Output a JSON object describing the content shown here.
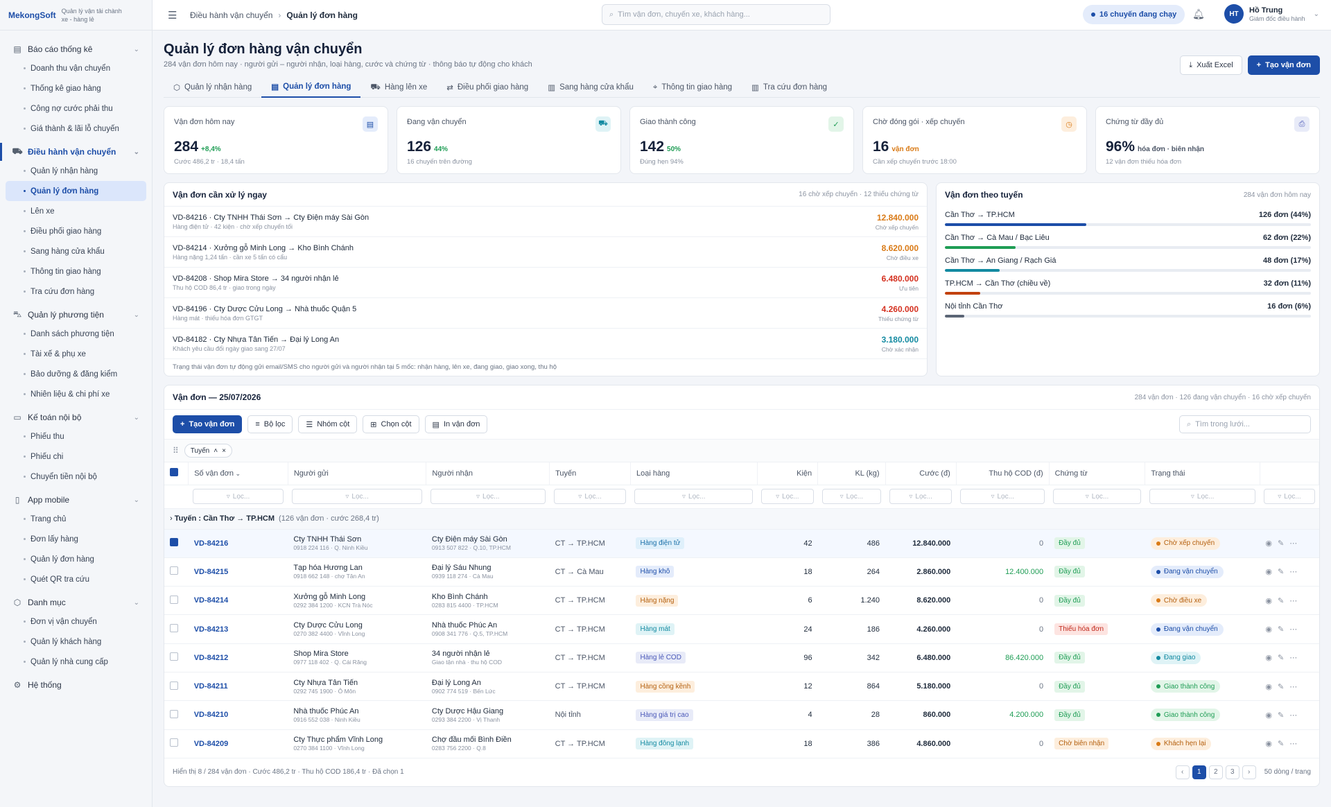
{
  "brand": {
    "logo": "MekongSoft",
    "tagline": "Quản lý vận tải chành xe - hàng lẻ"
  },
  "sidebar": [
    {
      "label": "Báo cáo thống kê",
      "icon": "report-icon",
      "active": false,
      "items": [
        "Doanh thu vận chuyển",
        "Thống kê giao hàng",
        "Công nợ cước phải thu",
        "Giá thành & lãi lỗ chuyến"
      ]
    },
    {
      "label": "Điều hành vận chuyển",
      "icon": "truck-icon",
      "active": true,
      "items": [
        "Quản lý nhận hàng",
        "Quản lý đơn hàng",
        "Lên xe",
        "Điều phối giao hàng",
        "Sang hàng cửa khẩu",
        "Thông tin giao hàng",
        "Tra cứu đơn hàng"
      ]
    },
    {
      "label": "Quản lý phương tiện",
      "icon": "vehicle-icon",
      "active": false,
      "items": [
        "Danh sách phương tiện",
        "Tài xế & phụ xe",
        "Bảo dưỡng & đăng kiểm",
        "Nhiên liệu & chi phí xe"
      ]
    },
    {
      "label": "Kế toán nội bộ",
      "icon": "cash-icon",
      "active": false,
      "items": [
        "Phiếu thu",
        "Phiếu chi",
        "Chuyển tiền nội bộ"
      ]
    },
    {
      "label": "App mobile",
      "icon": "mobile-icon",
      "active": false,
      "items": [
        "Trang chủ",
        "Đơn lấy hàng",
        "Quản lý đơn hàng",
        "Quét QR tra cứu"
      ]
    },
    {
      "label": "Danh mục",
      "icon": "box-icon",
      "active": false,
      "items": [
        "Đơn vị vận chuyển",
        "Quản lý khách hàng",
        "Quản lý nhà cung cấp"
      ]
    },
    {
      "label": "Hệ thống",
      "icon": "gear-icon",
      "active": false,
      "items": []
    }
  ],
  "selected_item": "Quản lý đơn hàng",
  "topbar": {
    "crumb1": "Điều hành vận chuyển",
    "crumb2": "Quản lý đơn hàng",
    "search_placeholder": "Tìm vận đơn, chuyến xe, khách hàng...",
    "trips_pill": "16 chuyến đang chạy",
    "user_initials": "HT",
    "user_name": "Hồ Trung",
    "user_role": "Giám đốc điều hành"
  },
  "page": {
    "title": "Quản lý đơn hàng vận chuyển",
    "subtitle": "284 vận đơn hôm nay · người gửi – người nhận, loại hàng, cước và chứng từ · thông báo tự động cho khách",
    "export_label": "Xuất Excel",
    "create_label": "Tạo vận đơn"
  },
  "tabs": [
    {
      "label": "Quản lý nhận hàng",
      "icon": "box-icon"
    },
    {
      "label": "Quản lý đơn hàng",
      "icon": "doc-icon",
      "active": true
    },
    {
      "label": "Hàng lên xe",
      "icon": "truck-icon"
    },
    {
      "label": "Điều phối giao hàng",
      "icon": "route-icon"
    },
    {
      "label": "Sang hàng cửa khẩu",
      "icon": "gate-icon"
    },
    {
      "label": "Thông tin giao hàng",
      "icon": "pin-icon"
    },
    {
      "label": "Tra cứu đơn hàng",
      "icon": "book-icon"
    }
  ],
  "kpis": [
    {
      "label": "Vận đơn hôm nay",
      "value": "284",
      "change": "+8,4%",
      "note": "Cước 486,2 tr · 18,4 tấn",
      "color": "#1f9d55",
      "icon": "doc-icon",
      "iconbg": "#e4ecfb",
      "iconfg": "#1d4ea8",
      "glyph": "▤"
    },
    {
      "label": "Đang vận chuyển",
      "value": "126",
      "change": "44%",
      "note": "16 chuyến trên đường",
      "color": "#1f9d55",
      "icon": "truck-icon",
      "iconbg": "#dff3f6",
      "iconfg": "#138aa1",
      "glyph": "⛟"
    },
    {
      "label": "Giao thành công",
      "value": "142",
      "change": "50%",
      "note": "Đúng hẹn 94%",
      "color": "#1f9d55",
      "icon": "check-circle-icon",
      "iconbg": "#e2f5e8",
      "iconfg": "#1f9d55",
      "glyph": "✓"
    },
    {
      "label": "Chờ đóng gói · xếp chuyến",
      "value": "16",
      "change": "vận đơn",
      "note": "Cần xếp chuyến trước 18:00",
      "color": "#d97a16",
      "icon": "clock-icon",
      "iconbg": "#fdeedd",
      "iconfg": "#d97a16",
      "glyph": "◷"
    },
    {
      "label": "Chứng từ đầy đủ",
      "value": "96%",
      "change": "hóa đơn · biên nhận",
      "note": "12 vận đơn thiếu hóa đơn",
      "color": "#4b5566",
      "icon": "printer-icon",
      "iconbg": "#e8ebf8",
      "iconfg": "#4957b8",
      "glyph": "⎙"
    }
  ],
  "urgent": {
    "title": "Vận đơn cần xử lý ngay",
    "meta": "16 chờ xếp chuyến · 12 thiếu chứng từ",
    "footer": "Trạng thái vận đơn tự động gửi email/SMS cho người gửi và người nhận tại 5 mốc: nhận hàng, lên xe, đang giao, giao xong, thu hộ",
    "rows": [
      {
        "line1": "VD-84216 · Cty TNHH Thái Sơn → Cty Điện máy Sài Gòn",
        "line2": "Hàng điện tử · 42 kiện · chờ xếp chuyến tối",
        "amount": "12.840.000",
        "status": "Chờ xếp chuyến",
        "color": "#d97a16"
      },
      {
        "line1": "VD-84214 · Xưởng gỗ Minh Long → Kho Bình Chánh",
        "line2": "Hàng nặng 1,24 tấn · cần xe 5 tấn có cẩu",
        "amount": "8.620.000",
        "status": "Chờ điều xe",
        "color": "#d97a16"
      },
      {
        "line1": "VD-84208 · Shop Mira Store → 34 người nhận lẻ",
        "line2": "Thu hộ COD 86,4 tr · giao trong ngày",
        "amount": "6.480.000",
        "status": "Ưu tiên",
        "color": "#d4301f"
      },
      {
        "line1": "VD-84196 · Cty Dược Cửu Long → Nhà thuốc Quận 5",
        "line2": "Hàng mát · thiếu hóa đơn GTGT",
        "amount": "4.260.000",
        "status": "Thiếu chứng từ",
        "color": "#d4301f"
      },
      {
        "line1": "VD-84182 · Cty Nhựa Tân Tiến → Đại lý Long An",
        "line2": "Khách yêu cầu đổi ngày giao sang 27/07",
        "amount": "3.180.000",
        "status": "Chờ xác nhận",
        "color": "#138aa1"
      }
    ]
  },
  "routes": {
    "title": "Vận đơn theo tuyến",
    "meta": "284 vận đơn hôm nay",
    "rows": [
      {
        "name": "Cần Thơ → TP.HCM",
        "value": "126 đơn (44%)",
        "pct": 44,
        "color": "#1d4ea8"
      },
      {
        "name": "Cần Thơ → Cà Mau / Bạc Liêu",
        "value": "62 đơn (22%)",
        "pct": 22,
        "color": "#1f9d55"
      },
      {
        "name": "Cần Thơ → An Giang / Rạch Giá",
        "value": "48 đơn (17%)",
        "pct": 17,
        "color": "#138aa1"
      },
      {
        "name": "TP.HCM → Cần Thơ (chiều về)",
        "value": "32 đơn (11%)",
        "pct": 11,
        "color": "#c2410c"
      },
      {
        "name": "Nội tỉnh Cần Thơ",
        "value": "16 đơn (6%)",
        "pct": 6,
        "color": "#5b6575"
      }
    ]
  },
  "grid": {
    "title": "Vận đơn — 25/07/2026",
    "meta": "284 vận đơn · 126 đang vận chuyển · 16 chờ xếp chuyến",
    "btn_create": "Tạo vận đơn",
    "btn_filter": "Bộ lọc",
    "btn_group": "Nhóm cột",
    "btn_cols": "Chọn cột",
    "btn_print": "In vận đơn",
    "search_placeholder": "Tìm trong lưới...",
    "group_chip": "Tuyến",
    "filter_placeholder": "Lọc...",
    "columns": [
      "Số vận đơn",
      "Người gửi",
      "Người nhận",
      "Tuyến",
      "Loại hàng",
      "Kiện",
      "KL (kg)",
      "Cước (đ)",
      "Thu hộ COD (đ)",
      "Chứng từ",
      "Trạng thái"
    ],
    "group_label": "Tuyến : Cần Thơ → TP.HCM",
    "group_meta": "(126 vận đơn · cước 268,4 tr)",
    "rows": [
      {
        "code": "VD-84216",
        "sender": "Cty TNHH Thái Sơn",
        "sender_sub": "0918 224 116 · Q. Ninh Kiều",
        "recv": "Cty Điện máy Sài Gòn",
        "recv_sub": "0913 507 822 · Q.10, TP.HCM",
        "route": "CT → TP.HCM",
        "type": "Hàng điện tử",
        "type_bg": "#dff0fb",
        "type_fg": "#1a6fa8",
        "pcs": "42",
        "kg": "486",
        "fee": "12.840.000",
        "cod": "0",
        "doc": "Đầy đủ",
        "doc_bg": "#e2f5e8",
        "doc_fg": "#1f9d55",
        "status": "Chờ xếp chuyến",
        "st_bg": "#fdeedd",
        "st_fg": "#b45f0d",
        "st_dot": "#d97a16",
        "checked": true
      },
      {
        "code": "VD-84215",
        "sender": "Tạp hóa Hương Lan",
        "sender_sub": "0918 662 148 · chợ Tân An",
        "recv": "Đại lý Sáu Nhung",
        "recv_sub": "0939 118 274 · Cà Mau",
        "route": "CT → Cà Mau",
        "type": "Hàng khô",
        "type_bg": "#e4ecfb",
        "type_fg": "#1d4ea8",
        "pcs": "18",
        "kg": "264",
        "fee": "2.860.000",
        "cod": "12.400.000",
        "doc": "Đầy đủ",
        "doc_bg": "#e2f5e8",
        "doc_fg": "#1f9d55",
        "status": "Đang vận chuyển",
        "st_bg": "#e4ecfb",
        "st_fg": "#1d4ea8",
        "st_dot": "#1d4ea8",
        "checked": false
      },
      {
        "code": "VD-84214",
        "sender": "Xưởng gỗ Minh Long",
        "sender_sub": "0292 384 1200 · KCN Trà Nóc",
        "recv": "Kho Bình Chánh",
        "recv_sub": "0283 815 4400 · TP.HCM",
        "route": "CT → TP.HCM",
        "type": "Hàng nặng",
        "type_bg": "#fdeedd",
        "type_fg": "#b45f0d",
        "pcs": "6",
        "kg": "1.240",
        "fee": "8.620.000",
        "cod": "0",
        "doc": "Đầy đủ",
        "doc_bg": "#e2f5e8",
        "doc_fg": "#1f9d55",
        "status": "Chờ điều xe",
        "st_bg": "#fdeedd",
        "st_fg": "#b45f0d",
        "st_dot": "#d97a16",
        "checked": false
      },
      {
        "code": "VD-84213",
        "sender": "Cty Dược Cửu Long",
        "sender_sub": "0270 382 4400 · Vĩnh Long",
        "recv": "Nhà thuốc Phúc An",
        "recv_sub": "0908 341 776 · Q.5, TP.HCM",
        "route": "CT → TP.HCM",
        "type": "Hàng mát",
        "type_bg": "#dff3f6",
        "type_fg": "#138aa1",
        "pcs": "24",
        "kg": "186",
        "fee": "4.260.000",
        "cod": "0",
        "doc": "Thiếu hóa đơn",
        "doc_bg": "#fde4e1",
        "doc_fg": "#c0271a",
        "status": "Đang vận chuyển",
        "st_bg": "#e4ecfb",
        "st_fg": "#1d4ea8",
        "st_dot": "#1d4ea8",
        "checked": false
      },
      {
        "code": "VD-84212",
        "sender": "Shop Mira Store",
        "sender_sub": "0977 118 402 · Q. Cái Răng",
        "recv": "34 người nhận lẻ",
        "recv_sub": "Giao tận nhà · thu hộ COD",
        "route": "CT → TP.HCM",
        "type": "Hàng lẻ COD",
        "type_bg": "#e8ebf8",
        "type_fg": "#4957b8",
        "pcs": "96",
        "kg": "342",
        "fee": "6.480.000",
        "cod": "86.420.000",
        "doc": "Đầy đủ",
        "doc_bg": "#e2f5e8",
        "doc_fg": "#1f9d55",
        "status": "Đang giao",
        "st_bg": "#dff3f6",
        "st_fg": "#138aa1",
        "st_dot": "#138aa1",
        "checked": false
      },
      {
        "code": "VD-84211",
        "sender": "Cty Nhựa Tân Tiến",
        "sender_sub": "0292 745 1900 · Ô Môn",
        "recv": "Đại lý Long An",
        "recv_sub": "0902 774 519 · Bến Lức",
        "route": "CT → TP.HCM",
        "type": "Hàng cồng kềnh",
        "type_bg": "#fdeedd",
        "type_fg": "#b45f0d",
        "pcs": "12",
        "kg": "864",
        "fee": "5.180.000",
        "cod": "0",
        "doc": "Đầy đủ",
        "doc_bg": "#e2f5e8",
        "doc_fg": "#1f9d55",
        "status": "Giao thành công",
        "st_bg": "#e2f5e8",
        "st_fg": "#1f9d55",
        "st_dot": "#1f9d55",
        "checked": false
      },
      {
        "code": "VD-84210",
        "sender": "Nhà thuốc Phúc An",
        "sender_sub": "0916 552 038 · Ninh Kiều",
        "recv": "Cty Dược Hậu Giang",
        "recv_sub": "0293 384 2200 · Vị Thanh",
        "route": "Nội tỉnh",
        "type": "Hàng giá trị cao",
        "type_bg": "#e8ebf8",
        "type_fg": "#4957b8",
        "pcs": "4",
        "kg": "28",
        "fee": "860.000",
        "cod": "4.200.000",
        "doc": "Đầy đủ",
        "doc_bg": "#e2f5e8",
        "doc_fg": "#1f9d55",
        "status": "Giao thành công",
        "st_bg": "#e2f5e8",
        "st_fg": "#1f9d55",
        "st_dot": "#1f9d55",
        "checked": false
      },
      {
        "code": "VD-84209",
        "sender": "Cty Thực phẩm Vĩnh Long",
        "sender_sub": "0270 384 1100 · Vĩnh Long",
        "recv": "Chợ đầu mối Bình Điền",
        "recv_sub": "0283 756 2200 · Q.8",
        "route": "CT → TP.HCM",
        "type": "Hàng đông lạnh",
        "type_bg": "#dff3f6",
        "type_fg": "#138aa1",
        "pcs": "18",
        "kg": "386",
        "fee": "4.860.000",
        "cod": "0",
        "doc": "Chờ biên nhận",
        "doc_bg": "#fdeedd",
        "doc_fg": "#b45f0d",
        "status": "Khách hẹn lại",
        "st_bg": "#fdeedd",
        "st_fg": "#b45f0d",
        "st_dot": "#d97a16",
        "checked": false
      }
    ],
    "footer": "Hiển thị 8 / 284 vận đơn · Cước 486,2 tr · Thu hộ COD 186,4 tr · Đã chọn 1",
    "pages": [
      "1",
      "2",
      "3"
    ],
    "per_page": "50 dòng / trang"
  }
}
